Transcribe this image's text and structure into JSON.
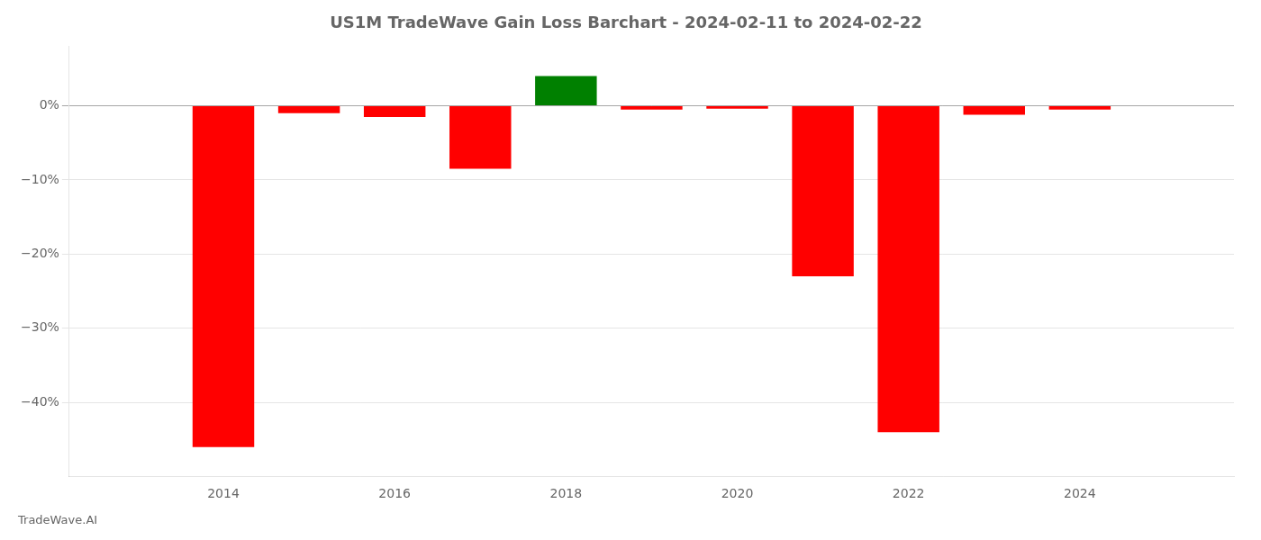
{
  "chart_data": {
    "type": "bar",
    "title": "US1M TradeWave Gain Loss Barchart - 2024-02-11 to 2024-02-22",
    "annotations": [
      "TradeWave.AI"
    ],
    "x": [
      2014,
      2015,
      2016,
      2017,
      2018,
      2019,
      2020,
      2021,
      2022,
      2023,
      2024
    ],
    "values": [
      -46.0,
      -1.0,
      -1.5,
      -8.5,
      4.0,
      -0.5,
      -0.4,
      -23.0,
      -44.0,
      -1.2,
      -0.5
    ],
    "colors": [
      "#ff0000",
      "#ff0000",
      "#ff0000",
      "#ff0000",
      "#008000",
      "#ff0000",
      "#ff0000",
      "#ff0000",
      "#ff0000",
      "#ff0000",
      "#ff0000"
    ],
    "xlim": [
      2012.2,
      2025.8
    ],
    "xticks": [
      2014,
      2016,
      2018,
      2020,
      2022,
      2024
    ],
    "ylim": [
      -50,
      8
    ],
    "yticks": [
      {
        "value": 0,
        "label": "0%"
      },
      {
        "value": -10,
        "label": "−10%"
      },
      {
        "value": -20,
        "label": "−20%"
      },
      {
        "value": -30,
        "label": "−30%"
      },
      {
        "value": -40,
        "label": "−40%"
      }
    ],
    "grid": true
  }
}
